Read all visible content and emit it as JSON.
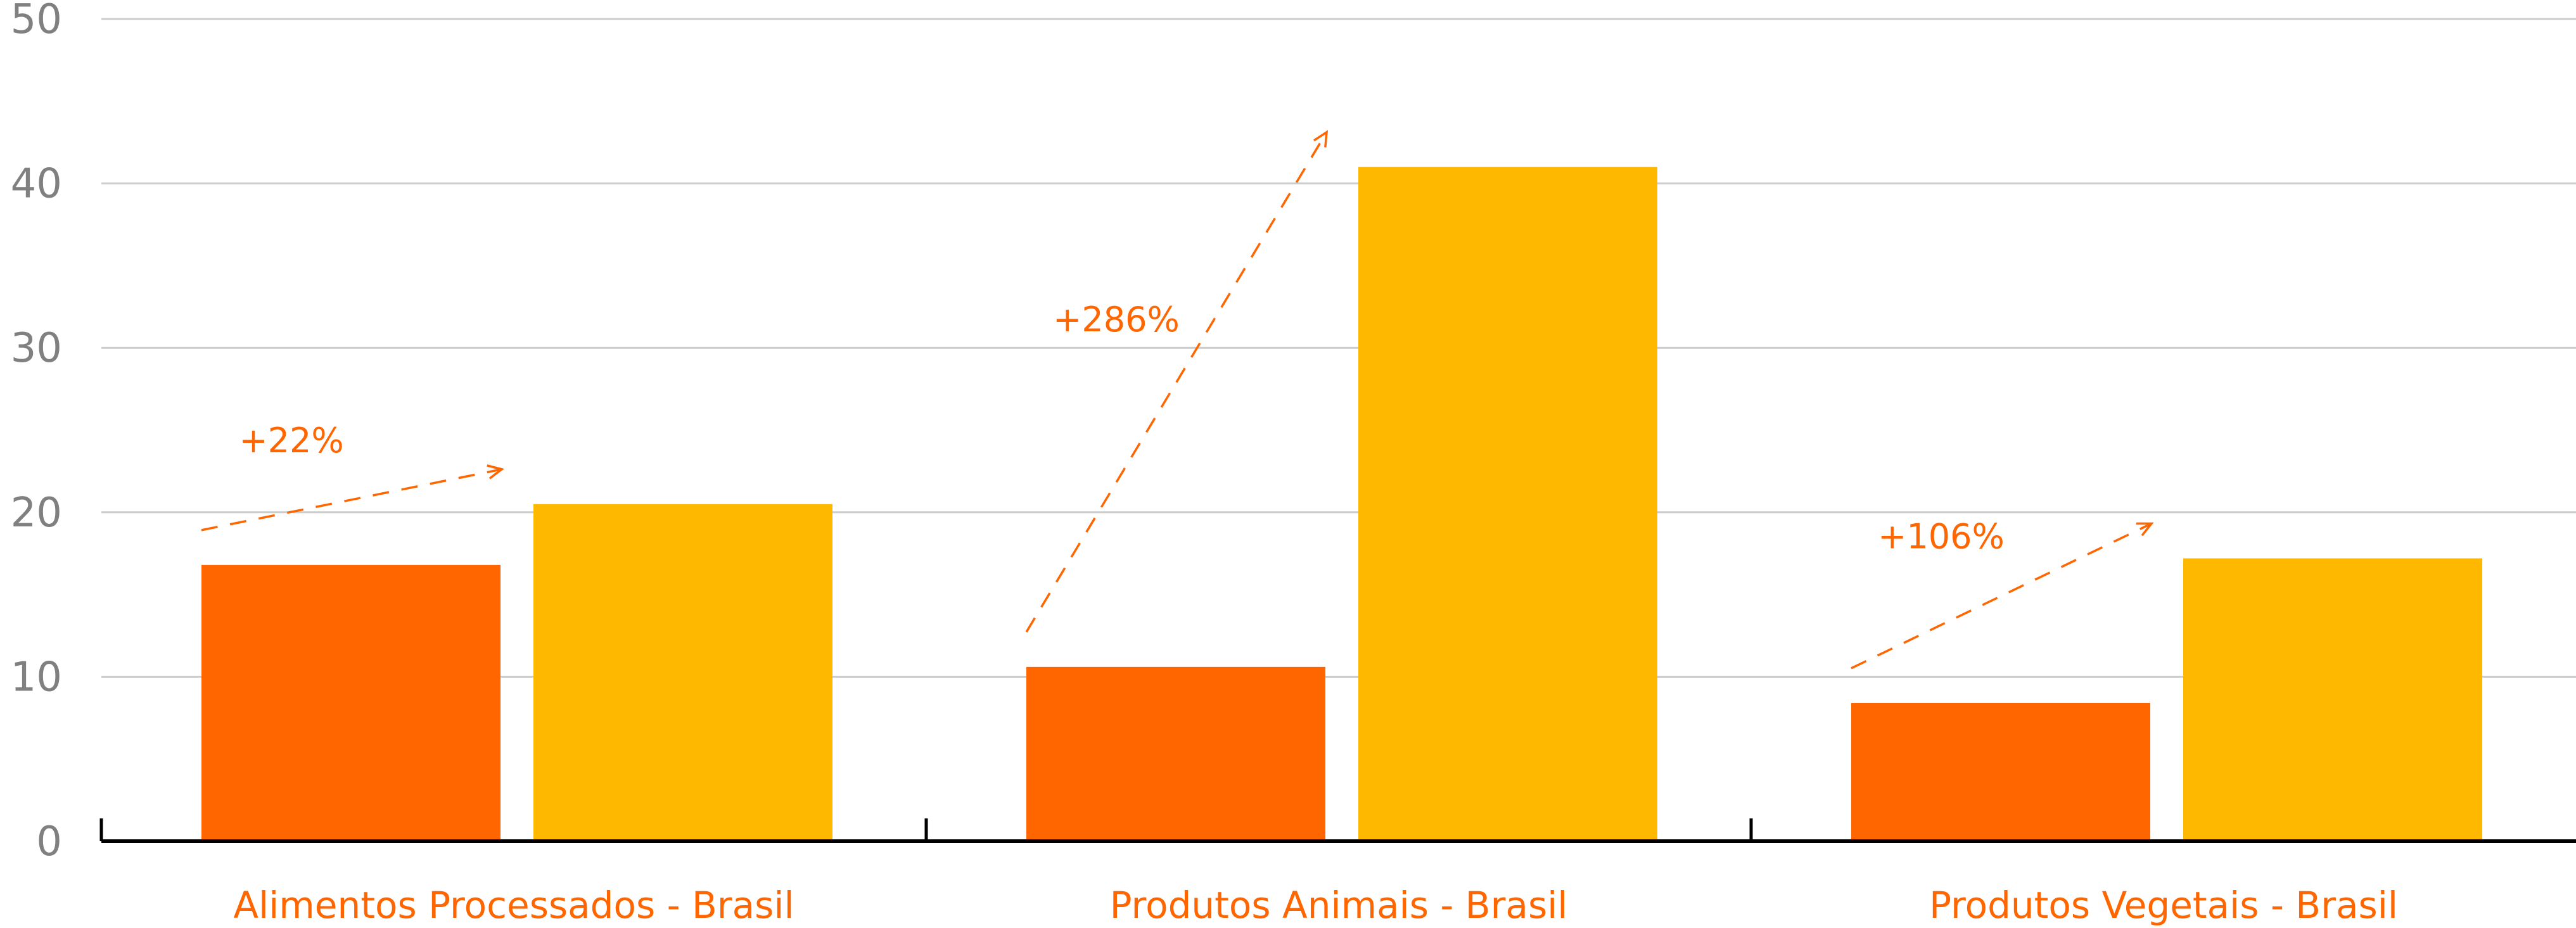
{
  "chart_data": {
    "type": "bar",
    "categories": [
      "Alimentos Processados - Brasil",
      "Produtos Animais - Brasil",
      "Produtos Vegetais - Brasil"
    ],
    "series": [
      {
        "values": [
          16.8,
          10.6,
          8.4
        ],
        "color": "#ff6600"
      },
      {
        "values": [
          20.5,
          41.0,
          17.2
        ],
        "color": "#ffb800"
      }
    ],
    "ylim": [
      0,
      50
    ],
    "yticks": [
      "0",
      "10",
      "20",
      "30",
      "40",
      "50"
    ],
    "grid": true,
    "annotations": [
      {
        "category": "Alimentos Processados - Brasil",
        "text": "+22%"
      },
      {
        "category": "Produtos Animais - Brasil",
        "text": "+286%"
      },
      {
        "category": "Produtos Vegetais - Brasil",
        "text": "+106%"
      }
    ],
    "title": "",
    "xlabel": "",
    "ylabel": ""
  }
}
